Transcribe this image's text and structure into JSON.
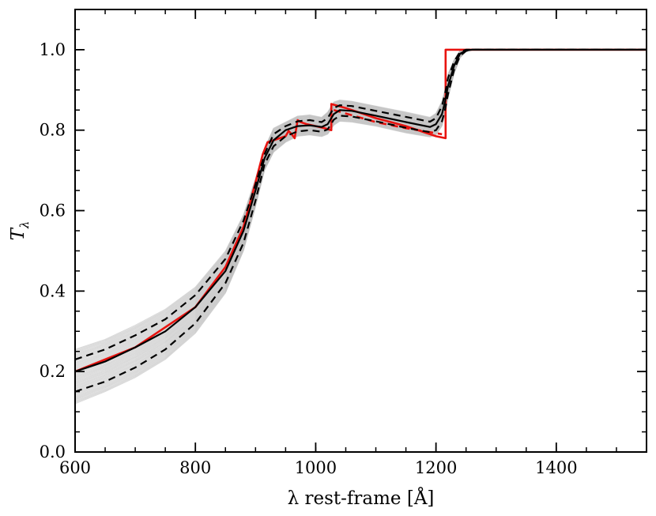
{
  "chart_data": {
    "type": "line",
    "title": "",
    "xlabel": "λ rest-frame [Å]",
    "ylabel": "T",
    "ylabel_subscript": "λ",
    "xlim": [
      600,
      1550
    ],
    "ylim": [
      0.0,
      1.1
    ],
    "x_ticks": [
      600,
      800,
      1000,
      1200,
      1400
    ],
    "x_tick_labels": [
      "600",
      "800",
      "1000",
      "1200",
      "1400"
    ],
    "x_minor_step": 50,
    "y_ticks": [
      0.0,
      0.2,
      0.4,
      0.6,
      0.8,
      1.0
    ],
    "y_tick_labels": [
      "0.0",
      "0.2",
      "0.4",
      "0.6",
      "0.8",
      "1.0"
    ],
    "y_minor_step": 0.05,
    "grid": false,
    "colors": {
      "model": "#e8130f",
      "median": "#000000",
      "bounds": "#000000",
      "draws": "#bbbbbb"
    },
    "series": [
      {
        "name": "model transmission (red)",
        "style": "solid",
        "x": [
          600,
          700,
          800,
          850,
          880,
          900,
          912,
          920,
          930,
          940,
          950,
          955,
          960,
          965,
          970,
          975,
          985,
          1000,
          1015,
          1026,
          1026,
          1050,
          1100,
          1150,
          1200,
          1216,
          1216,
          1550
        ],
        "y": [
          0.2,
          0.26,
          0.36,
          0.46,
          0.56,
          0.67,
          0.74,
          0.77,
          0.775,
          0.78,
          0.785,
          0.798,
          0.79,
          0.78,
          0.825,
          0.82,
          0.815,
          0.81,
          0.805,
          0.8,
          0.865,
          0.855,
          0.83,
          0.81,
          0.785,
          0.78,
          1.0,
          1.0
        ]
      },
      {
        "name": "model lower dashed (red)",
        "style": "dashed",
        "x": [
          1030,
          1100,
          1150,
          1210
        ],
        "y": [
          0.85,
          0.82,
          0.805,
          0.79
        ]
      },
      {
        "name": "median (black)",
        "style": "solid",
        "x": [
          600,
          650,
          700,
          750,
          800,
          850,
          880,
          900,
          915,
          930,
          950,
          970,
          990,
          1010,
          1020,
          1030,
          1040,
          1060,
          1100,
          1150,
          1190,
          1200,
          1210,
          1215,
          1220,
          1230,
          1240,
          1250,
          1260,
          1280,
          1550
        ],
        "y": [
          0.2,
          0.225,
          0.26,
          0.3,
          0.36,
          0.45,
          0.55,
          0.65,
          0.73,
          0.775,
          0.8,
          0.81,
          0.812,
          0.808,
          0.815,
          0.84,
          0.85,
          0.848,
          0.836,
          0.82,
          0.808,
          0.815,
          0.84,
          0.87,
          0.91,
          0.96,
          0.99,
          0.998,
          1.0,
          1.0,
          1.0
        ]
      },
      {
        "name": "upper bound (dashed black)",
        "style": "dashed",
        "x": [
          600,
          650,
          700,
          750,
          800,
          850,
          880,
          900,
          915,
          930,
          950,
          970,
          990,
          1010,
          1020,
          1030,
          1040,
          1060,
          1100,
          1150,
          1190,
          1200,
          1210,
          1215,
          1220,
          1230,
          1240,
          1250,
          1260,
          1280,
          1550
        ],
        "y": [
          0.23,
          0.255,
          0.29,
          0.33,
          0.39,
          0.48,
          0.575,
          0.665,
          0.74,
          0.79,
          0.81,
          0.822,
          0.825,
          0.82,
          0.83,
          0.855,
          0.862,
          0.86,
          0.848,
          0.833,
          0.821,
          0.83,
          0.86,
          0.89,
          0.93,
          0.97,
          0.995,
          1.0,
          1.0,
          1.0,
          1.0
        ]
      },
      {
        "name": "lower bound (dashed black)",
        "style": "dashed",
        "x": [
          600,
          650,
          700,
          750,
          800,
          850,
          880,
          900,
          915,
          930,
          950,
          970,
          990,
          1010,
          1020,
          1030,
          1040,
          1060,
          1100,
          1150,
          1190,
          1200,
          1210,
          1215,
          1220,
          1230,
          1240,
          1250,
          1260,
          1280,
          1550
        ],
        "y": [
          0.15,
          0.175,
          0.21,
          0.255,
          0.32,
          0.42,
          0.52,
          0.625,
          0.715,
          0.76,
          0.785,
          0.797,
          0.8,
          0.796,
          0.802,
          0.826,
          0.836,
          0.834,
          0.822,
          0.806,
          0.795,
          0.8,
          0.822,
          0.85,
          0.89,
          0.95,
          0.985,
          0.997,
          1.0,
          1.0,
          1.0
        ]
      }
    ],
    "draws_envelope": {
      "name": "posterior draws (grey)",
      "x": [
        600,
        650,
        700,
        750,
        800,
        850,
        880,
        900,
        915,
        930,
        950,
        970,
        990,
        1010,
        1020,
        1030,
        1040,
        1060,
        1100,
        1150,
        1190,
        1200,
        1210,
        1215,
        1220,
        1230,
        1240,
        1250,
        1260,
        1280,
        1550
      ],
      "upper": [
        0.255,
        0.28,
        0.315,
        0.355,
        0.41,
        0.5,
        0.59,
        0.68,
        0.755,
        0.805,
        0.82,
        0.835,
        0.838,
        0.832,
        0.845,
        0.87,
        0.875,
        0.872,
        0.86,
        0.845,
        0.832,
        0.842,
        0.872,
        0.9,
        0.94,
        0.975,
        0.998,
        1.0,
        1.0,
        1.0,
        1.0
      ],
      "lower": [
        0.12,
        0.15,
        0.185,
        0.23,
        0.295,
        0.395,
        0.5,
        0.61,
        0.7,
        0.745,
        0.77,
        0.785,
        0.788,
        0.784,
        0.79,
        0.812,
        0.822,
        0.82,
        0.81,
        0.793,
        0.783,
        0.788,
        0.81,
        0.84,
        0.88,
        0.94,
        0.98,
        0.995,
        1.0,
        1.0,
        1.0
      ]
    }
  }
}
